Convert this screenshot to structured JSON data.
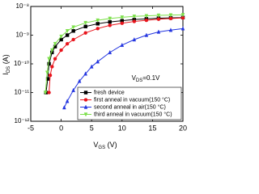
{
  "chart_data": {
    "type": "line",
    "xlabel": {
      "main": "V",
      "sub": "GS",
      "unit": " (V)"
    },
    "ylabel": {
      "main": "I",
      "sub": "DS",
      "unit": " (A)"
    },
    "annotation": {
      "main": "V",
      "sub": "DS",
      "rest": "=0.1V"
    },
    "xlim": [
      -5,
      20
    ],
    "xticks": [
      -5,
      0,
      5,
      10,
      15,
      20
    ],
    "ylim": [
      1e-12,
      1e-08
    ],
    "log_y": true,
    "yticks": [
      {
        "value": 1e-12,
        "label": "10⁻¹²"
      },
      {
        "value": 1e-11,
        "label": "10⁻¹¹"
      },
      {
        "value": 1e-10,
        "label": "10⁻¹⁰"
      },
      {
        "value": 1e-09,
        "label": "10⁻⁹"
      },
      {
        "value": 1e-08,
        "label": "10⁻⁸"
      }
    ],
    "legend": "lower right",
    "series": [
      {
        "name": "fresh device",
        "color": "#000000",
        "marker": "square",
        "x": [
          -2.5,
          -2.2,
          -2,
          -1.5,
          -1,
          0,
          1,
          2,
          4,
          6,
          8,
          10,
          12,
          14,
          16,
          18,
          20
        ],
        "values": [
          1e-11,
          3e-11,
          1e-10,
          2.5e-10,
          4e-10,
          7e-10,
          1e-09,
          1.4e-09,
          2e-09,
          2.5e-09,
          2.9e-09,
          3.2e-09,
          3.5e-09,
          3.7e-09,
          3.9e-09,
          4e-09,
          4.1e-09
        ]
      },
      {
        "name": "first anneal in vacuum(150 °C)",
        "color": "#e8141c",
        "marker": "circle",
        "x": [
          -2,
          -1.8,
          -1.5,
          -1,
          0,
          1,
          2,
          4,
          6,
          8,
          10,
          12,
          14,
          16,
          18,
          20
        ],
        "values": [
          1e-11,
          4e-11,
          8e-11,
          1.5e-10,
          3e-10,
          5e-10,
          7e-10,
          1.2e-09,
          1.7e-09,
          2.2e-09,
          2.6e-09,
          3e-09,
          3.3e-09,
          3.6e-09,
          3.8e-09,
          4e-09
        ]
      },
      {
        "name": "second anneal in air(150 °C)",
        "color": "#2436e0",
        "marker": "triangle",
        "x": [
          0.5,
          1,
          2,
          3,
          4,
          5,
          6,
          8,
          10,
          12,
          14,
          16,
          18,
          20
        ],
        "values": [
          3e-12,
          5e-12,
          1.2e-11,
          2.5e-11,
          4.5e-11,
          8e-11,
          1.2e-10,
          2.5e-10,
          4.5e-10,
          7e-10,
          1e-09,
          1.3e-09,
          1.5e-09,
          1.7e-09
        ]
      },
      {
        "name": "third anneal in vacuum(150 °C)",
        "color": "#7ce04a",
        "marker": "triangle-down",
        "x": [
          -2.6,
          -2.3,
          -2,
          -1.5,
          -1,
          0,
          1,
          2,
          4,
          6,
          8,
          10,
          12,
          14,
          16,
          18,
          20
        ],
        "values": [
          1e-11,
          5e-11,
          1.5e-10,
          3e-10,
          5e-10,
          9e-10,
          1.4e-09,
          1.9e-09,
          2.7e-09,
          3.3e-09,
          3.8e-09,
          4.2e-09,
          4.5e-09,
          4.7e-09,
          4.9e-09,
          5e-09,
          5.1e-09
        ]
      }
    ]
  }
}
